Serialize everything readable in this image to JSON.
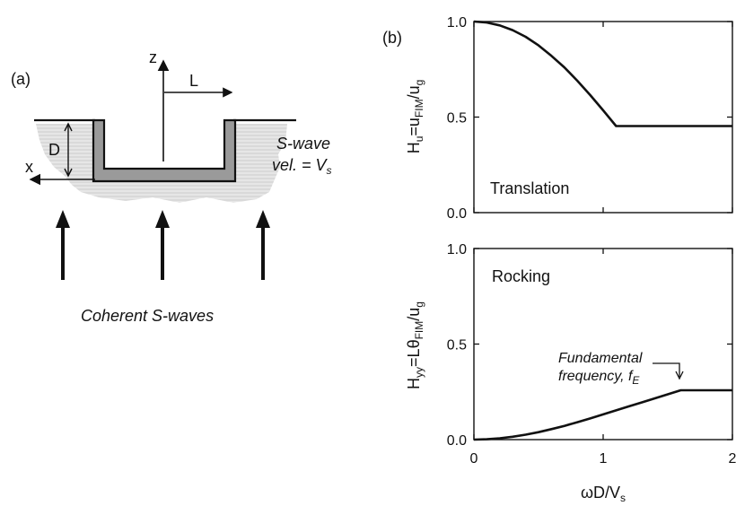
{
  "left_panel": {
    "tag": "(a)",
    "z_axis": "z",
    "x_axis": "x",
    "half_width": "L",
    "depth": "D",
    "swave_line1": "S-wave",
    "swave_line2": "vel. = V",
    "swave_sub": "s",
    "caption": "Coherent S-waves"
  },
  "right_panel": {
    "tag": "(b)",
    "x_axis_main": "ωD/V",
    "x_axis_sub": "s"
  },
  "chart_data": [
    {
      "type": "line",
      "title": "Translation",
      "ylabel": "H_u=u_FIM/u_g",
      "ylabel_parts": {
        "a": "H",
        "a_sub": "u",
        "b": "=u",
        "b_sub": "FIM",
        "c": "/u",
        "c_sub": "g"
      },
      "xlim": [
        0,
        2
      ],
      "ylim": [
        0,
        1
      ],
      "x_ticks": [
        "0",
        "1",
        "2"
      ],
      "y_ticks": [
        "0.0",
        "0.5",
        "1.0"
      ],
      "series": [
        {
          "x": [
            0,
            0.1,
            0.2,
            0.3,
            0.4,
            0.5,
            0.6,
            0.7,
            0.8,
            0.9,
            1.0,
            1.1,
            1.2,
            1.4,
            1.6,
            1.8,
            2.0
          ],
          "y": [
            1.0,
            0.995,
            0.98,
            0.955,
            0.92,
            0.875,
            0.82,
            0.76,
            0.69,
            0.615,
            0.535,
            0.453,
            0.453,
            0.453,
            0.453,
            0.453,
            0.453
          ]
        }
      ]
    },
    {
      "type": "line",
      "title": "Rocking",
      "ylabel": "H_yy=Lθ_FIM/u_g",
      "ylabel_parts": {
        "a": "H",
        "a_sub": "yy",
        "b": "=Lθ",
        "b_sub": "FIM",
        "c": "/u",
        "c_sub": "g"
      },
      "xlim": [
        0,
        2
      ],
      "ylim": [
        0,
        1
      ],
      "x_ticks": [
        "0",
        "1",
        "2"
      ],
      "y_ticks": [
        "0.0",
        "0.5",
        "1.0"
      ],
      "annotation": {
        "line1": "Fundamental",
        "line2": "frequency, f",
        "sub": "E"
      },
      "series": [
        {
          "x": [
            0,
            0.1,
            0.2,
            0.3,
            0.4,
            0.5,
            0.6,
            0.7,
            0.8,
            0.9,
            1.0,
            1.1,
            1.2,
            1.3,
            1.4,
            1.5,
            1.6,
            1.8,
            2.0
          ],
          "y": [
            0.0,
            0.002,
            0.007,
            0.015,
            0.026,
            0.039,
            0.055,
            0.072,
            0.091,
            0.111,
            0.132,
            0.153,
            0.174,
            0.195,
            0.216,
            0.237,
            0.258,
            0.258,
            0.258
          ]
        }
      ]
    }
  ]
}
